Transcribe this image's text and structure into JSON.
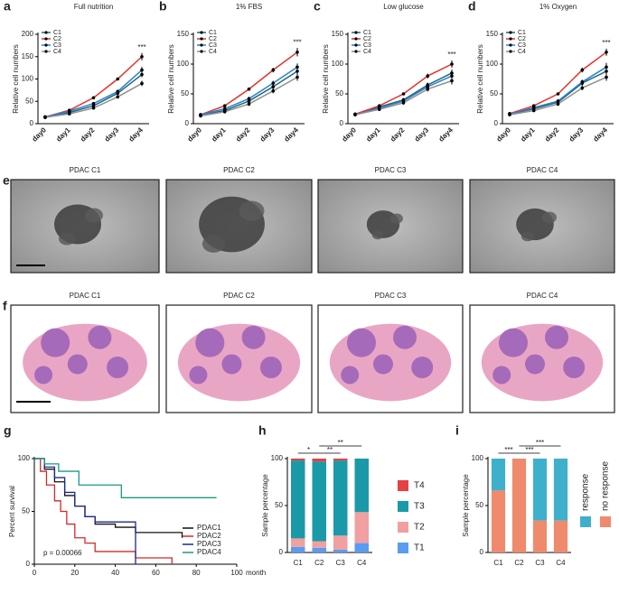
{
  "chart_data": [
    {
      "panel": "a",
      "type": "line",
      "title": "Full nutrition",
      "ylabel": "Relative cell numbers",
      "categories": [
        "day0",
        "day1",
        "day2",
        "day3",
        "day4"
      ],
      "ylim": [
        0,
        200
      ],
      "yticks": [
        0,
        50,
        100,
        150,
        200
      ],
      "annotation": "***",
      "series": [
        {
          "name": "C1",
          "color": "#1f6b75",
          "values": [
            15,
            25,
            40,
            68,
            110
          ],
          "errors": [
            1,
            2,
            3,
            4,
            6
          ]
        },
        {
          "name": "C2",
          "color": "#e8302a",
          "values": [
            15,
            30,
            58,
            100,
            150
          ],
          "errors": [
            1,
            2,
            2,
            3,
            8
          ]
        },
        {
          "name": "C3",
          "color": "#2e7fd6",
          "values": [
            15,
            28,
            45,
            72,
            120
          ],
          "errors": [
            1,
            2,
            3,
            4,
            7
          ]
        },
        {
          "name": "C4",
          "color": "#909090",
          "values": [
            14,
            22,
            35,
            60,
            90
          ],
          "errors": [
            1,
            2,
            3,
            4,
            6
          ]
        }
      ]
    },
    {
      "panel": "b",
      "type": "line",
      "title": "1% FBS",
      "ylabel": "Relative cell numbers",
      "categories": [
        "day0",
        "day1",
        "day2",
        "day3",
        "day4"
      ],
      "ylim": [
        0,
        150
      ],
      "yticks": [
        0,
        50,
        100,
        150
      ],
      "annotation": "***",
      "series": [
        {
          "name": "C1",
          "color": "#1f6b75",
          "values": [
            14,
            22,
            38,
            62,
            88
          ],
          "errors": [
            1,
            2,
            3,
            4,
            6
          ]
        },
        {
          "name": "C2",
          "color": "#e8302a",
          "values": [
            15,
            30,
            58,
            90,
            120
          ],
          "errors": [
            1,
            2,
            2,
            4,
            7
          ]
        },
        {
          "name": "C3",
          "color": "#2e7fd6",
          "values": [
            15,
            25,
            42,
            68,
            95
          ],
          "errors": [
            1,
            2,
            3,
            4,
            6
          ]
        },
        {
          "name": "C4",
          "color": "#909090",
          "values": [
            13,
            20,
            33,
            55,
            78
          ],
          "errors": [
            1,
            2,
            3,
            4,
            6
          ]
        }
      ]
    },
    {
      "panel": "c",
      "type": "line",
      "title": "Low glucose",
      "ylabel": "Relative cell numbers",
      "categories": [
        "day0",
        "day1",
        "day2",
        "day3",
        "day4"
      ],
      "ylim": [
        0,
        150
      ],
      "yticks": [
        0,
        50,
        100,
        150
      ],
      "annotation": "***",
      "series": [
        {
          "name": "C1",
          "color": "#1f6b75",
          "values": [
            16,
            28,
            40,
            65,
            85
          ],
          "errors": [
            1,
            2,
            3,
            4,
            6
          ]
        },
        {
          "name": "C2",
          "color": "#e8302a",
          "values": [
            16,
            30,
            50,
            80,
            100
          ],
          "errors": [
            1,
            2,
            2,
            4,
            6
          ]
        },
        {
          "name": "C3",
          "color": "#2e7fd6",
          "values": [
            15,
            26,
            38,
            62,
            80
          ],
          "errors": [
            1,
            2,
            3,
            4,
            6
          ]
        },
        {
          "name": "C4",
          "color": "#909090",
          "values": [
            15,
            24,
            35,
            58,
            72
          ],
          "errors": [
            1,
            2,
            3,
            4,
            6
          ]
        }
      ]
    },
    {
      "panel": "d",
      "type": "line",
      "title": "1% Oxygen",
      "ylabel": "Relative cell numbers",
      "categories": [
        "day0",
        "day1",
        "day2",
        "day3",
        "day4"
      ],
      "ylim": [
        0,
        150
      ],
      "yticks": [
        0,
        50,
        100,
        150
      ],
      "annotation": "***",
      "series": [
        {
          "name": "C1",
          "color": "#1f6b75",
          "values": [
            16,
            25,
            36,
            68,
            88
          ],
          "errors": [
            1,
            2,
            3,
            4,
            6
          ]
        },
        {
          "name": "C2",
          "color": "#e8302a",
          "values": [
            17,
            30,
            50,
            90,
            120
          ],
          "errors": [
            1,
            2,
            2,
            4,
            6
          ]
        },
        {
          "name": "C3",
          "color": "#2e7fd6",
          "values": [
            16,
            27,
            38,
            70,
            95
          ],
          "errors": [
            1,
            2,
            3,
            4,
            7
          ]
        },
        {
          "name": "C4",
          "color": "#909090",
          "values": [
            15,
            22,
            33,
            60,
            78
          ],
          "errors": [
            1,
            2,
            3,
            4,
            6
          ]
        }
      ]
    },
    {
      "panel": "g",
      "type": "survival",
      "ylabel": "Percent survival",
      "xlabel": "month",
      "xlim": [
        0,
        100
      ],
      "xticks": [
        0,
        20,
        40,
        60,
        80,
        100
      ],
      "ylim": [
        0,
        100
      ],
      "yticks": [
        0,
        50,
        100
      ],
      "annotation": "p = 0.00066",
      "series": [
        {
          "name": "PDAC1",
          "color": "#111111",
          "x": [
            0,
            5,
            10,
            15,
            20,
            25,
            30,
            40,
            50,
            70,
            73
          ],
          "values": [
            100,
            90,
            78,
            65,
            55,
            45,
            38,
            35,
            30,
            30,
            25
          ]
        },
        {
          "name": "PDAC2",
          "color": "#d62828",
          "x": [
            0,
            3,
            6,
            10,
            13,
            16,
            20,
            25,
            30,
            50,
            68
          ],
          "values": [
            100,
            88,
            75,
            60,
            50,
            38,
            25,
            20,
            12,
            6,
            0
          ]
        },
        {
          "name": "PDAC3",
          "color": "#1c2a8a",
          "x": [
            0,
            5,
            10,
            15,
            20,
            25,
            30,
            50
          ],
          "values": [
            100,
            92,
            82,
            68,
            55,
            45,
            40,
            0
          ]
        },
        {
          "name": "PDAC4",
          "color": "#1a9a80",
          "x": [
            0,
            5,
            12,
            22,
            43,
            90
          ],
          "values": [
            100,
            95,
            88,
            75,
            63,
            63
          ]
        }
      ]
    },
    {
      "panel": "h",
      "type": "stacked_bar",
      "ylabel": "Sample percentage",
      "categories": [
        "C1",
        "C2",
        "C3",
        "C4"
      ],
      "ylim": [
        0,
        100
      ],
      "yticks": [
        0,
        50,
        100
      ],
      "annotations": [
        "*",
        "**",
        "**"
      ],
      "series": [
        {
          "name": "T1",
          "color": "#5b9bf0",
          "values": [
            6,
            5,
            3,
            10
          ]
        },
        {
          "name": "T2",
          "color": "#f0a0a0",
          "values": [
            9,
            7,
            15,
            33
          ]
        },
        {
          "name": "T3",
          "color": "#1a9aa8",
          "values": [
            83,
            85,
            80,
            57
          ]
        },
        {
          "name": "T4",
          "color": "#e84040",
          "values": [
            2,
            3,
            2,
            0
          ]
        }
      ]
    },
    {
      "panel": "i",
      "type": "stacked_bar",
      "ylabel": "Sample percentage",
      "categories": [
        "C1",
        "C2",
        "C3",
        "C4"
      ],
      "ylim": [
        0,
        100
      ],
      "yticks": [
        0,
        50,
        100
      ],
      "annotations": [
        "***",
        "***",
        "***"
      ],
      "series": [
        {
          "name": "no response",
          "color": "#f08a6c",
          "values": [
            66,
            100,
            34,
            34
          ]
        },
        {
          "name": "response",
          "color": "#3fb0cc",
          "values": [
            34,
            0,
            66,
            66
          ]
        }
      ]
    }
  ],
  "figures": [
    {
      "panel": "e",
      "labels": [
        "PDAC C1",
        "PDAC C2",
        "PDAC C3",
        "PDAC C4"
      ]
    },
    {
      "panel": "f",
      "labels": [
        "PDAC C1",
        "PDAC C2",
        "PDAC C3",
        "PDAC C4"
      ]
    }
  ]
}
